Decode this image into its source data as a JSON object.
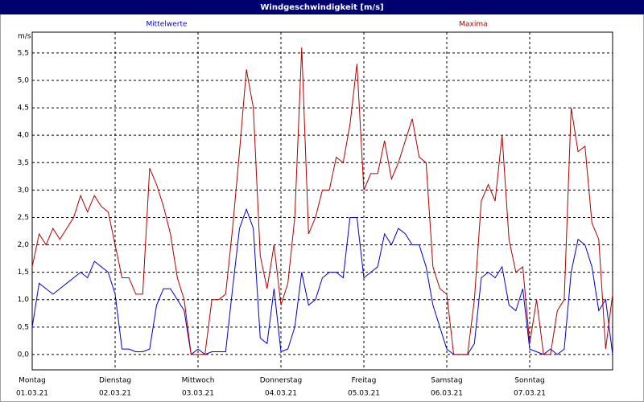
{
  "chart_data": {
    "type": "line",
    "title": "Windgeschwindigkeit [m/s]",
    "y_label": "m/s",
    "x": [
      0,
      2,
      4,
      6,
      8,
      10,
      12,
      14,
      16,
      18,
      20,
      22,
      24,
      26,
      28,
      30,
      32,
      34,
      36,
      38,
      40,
      42,
      44,
      46,
      48,
      50,
      52,
      54,
      56,
      58,
      60,
      62,
      64,
      66,
      68,
      70,
      72,
      74,
      76,
      78,
      80,
      82,
      84,
      86,
      88,
      90,
      92,
      94,
      96,
      98,
      100,
      102,
      104,
      106,
      108,
      110,
      112,
      114,
      116,
      118,
      120,
      122,
      124,
      126,
      128,
      130,
      132,
      134,
      136,
      138,
      140,
      142,
      144,
      146,
      148,
      150,
      152,
      154,
      156,
      158,
      160,
      162,
      164,
      166,
      168
    ],
    "series": [
      {
        "name": "Mittelwerte",
        "color": "#0000cc",
        "values": [
          0.5,
          1.3,
          1.2,
          1.1,
          1.2,
          1.3,
          1.4,
          1.5,
          1.4,
          1.7,
          1.6,
          1.5,
          1.1,
          0.1,
          0.1,
          0.05,
          0.05,
          0.1,
          0.9,
          1.2,
          1.2,
          1.0,
          0.8,
          0.0,
          0.1,
          0.0,
          0.05,
          0.05,
          0.05,
          1.2,
          2.3,
          2.65,
          2.3,
          0.3,
          0.2,
          1.2,
          0.05,
          0.1,
          0.5,
          1.5,
          0.9,
          1.0,
          1.4,
          1.5,
          1.5,
          1.4,
          2.5,
          2.5,
          1.4,
          1.5,
          1.6,
          2.2,
          2.0,
          2.3,
          2.2,
          2.0,
          2.0,
          1.6,
          0.9,
          0.5,
          0.1,
          0.0,
          0.0,
          0.0,
          0.2,
          1.4,
          1.5,
          1.4,
          1.6,
          0.9,
          0.8,
          1.2,
          0.1,
          0.05,
          0.0,
          0.1,
          0.0,
          0.1,
          1.5,
          2.1,
          2.0,
          1.6,
          0.8,
          1.0,
          0.0
        ]
      },
      {
        "name": "Maxima",
        "color": "#b00000",
        "values": [
          1.6,
          2.2,
          2.0,
          2.3,
          2.1,
          2.3,
          2.5,
          2.9,
          2.6,
          2.9,
          2.7,
          2.6,
          2.0,
          1.4,
          1.4,
          1.1,
          1.1,
          3.4,
          3.1,
          2.7,
          2.2,
          1.4,
          1.0,
          0.0,
          0.0,
          0.0,
          1.0,
          1.0,
          1.1,
          2.3,
          3.7,
          5.2,
          4.5,
          1.8,
          1.2,
          2.0,
          0.9,
          1.3,
          2.5,
          5.6,
          2.2,
          2.5,
          3.0,
          3.0,
          3.6,
          3.5,
          4.2,
          5.3,
          3.0,
          3.3,
          3.3,
          3.9,
          3.2,
          3.5,
          3.9,
          4.3,
          3.6,
          3.5,
          1.6,
          1.2,
          1.1,
          0.0,
          0.0,
          0.0,
          1.0,
          2.8,
          3.1,
          2.8,
          4.0,
          2.1,
          1.5,
          1.6,
          0.2,
          1.0,
          0.0,
          0.0,
          0.8,
          1.0,
          4.5,
          3.7,
          3.8,
          2.4,
          2.1,
          0.1,
          1.1
        ]
      }
    ],
    "xlim": [
      0,
      168
    ],
    "xticks": [
      {
        "value": 0,
        "label": "Montag",
        "date": "01.03.21"
      },
      {
        "value": 24,
        "label": "Dienstag",
        "date": "02.03.21"
      },
      {
        "value": 48,
        "label": "Mittwoch",
        "date": "03.03.21"
      },
      {
        "value": 72,
        "label": "Donnerstag",
        "date": "04.03.21"
      },
      {
        "value": 96,
        "label": "Freitag",
        "date": "05.03.21"
      },
      {
        "value": 120,
        "label": "Samstag",
        "date": "06.03.21"
      },
      {
        "value": 144,
        "label": "Sonntag",
        "date": "07.03.21"
      }
    ],
    "ylim": [
      -0.28,
      5.88
    ],
    "yticks": [
      {
        "value": 0,
        "label": "0,0"
      },
      {
        "value": 0.5,
        "label": "0,5"
      },
      {
        "value": 1,
        "label": "1,0"
      },
      {
        "value": 1.5,
        "label": "1,5"
      },
      {
        "value": 2,
        "label": "2,0"
      },
      {
        "value": 2.5,
        "label": "2,5"
      },
      {
        "value": 3,
        "label": "3,0"
      },
      {
        "value": 3.5,
        "label": "3,5"
      },
      {
        "value": 4,
        "label": "4,0"
      },
      {
        "value": 4.5,
        "label": "4,5"
      },
      {
        "value": 5,
        "label": "5,0"
      },
      {
        "value": 5.5,
        "label": "5,5"
      }
    ],
    "grid": true
  }
}
